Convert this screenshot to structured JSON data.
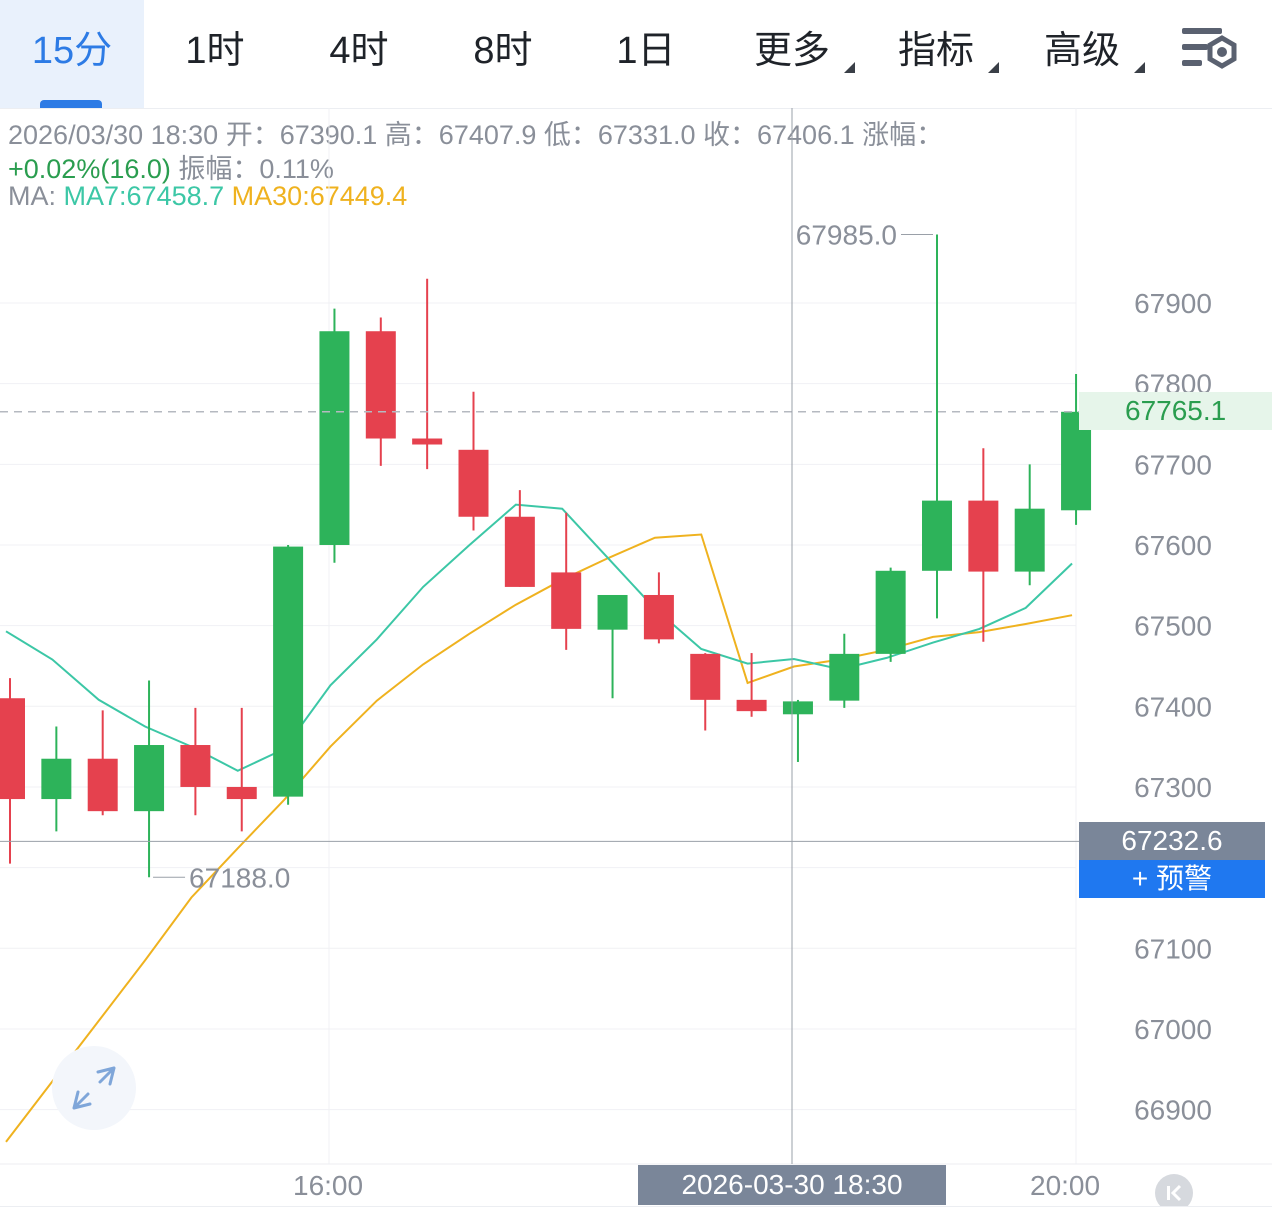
{
  "tabs": [
    {
      "label": "15分",
      "active": true
    },
    {
      "label": "1时"
    },
    {
      "label": "4时"
    },
    {
      "label": "8时"
    },
    {
      "label": "1日"
    },
    {
      "label": "更多",
      "dropdown": true
    },
    {
      "label": "指标",
      "dropdown": true
    },
    {
      "label": "高级",
      "dropdown": true
    }
  ],
  "settings_icon": "chart-settings-icon",
  "info": {
    "line1": "2026/03/30 18:30 开：67390.1 高：67407.9 低：67331.0 收：67406.1 涨幅：",
    "change": "+0.02%(16.0)",
    "amp": " 振幅：0.11%",
    "ma_prefix": "MA: ",
    "ma7": "MA7:67458.7",
    "ma30": "MA30:67449.4"
  },
  "labels": {
    "high_marker": "67985.0",
    "low_marker": "67188.0",
    "current_price": "67765.1",
    "crosshair_price": "67232.6",
    "alert_button": "+ 预警",
    "crosshair_time": "2026-03-30 18:30",
    "x_ticks": [
      "16:00",
      "20:00"
    ]
  },
  "colors": {
    "up": "#2db35a",
    "down": "#e5414e",
    "ma7": "#3cc7a6",
    "ma30": "#efb21f",
    "accent": "#2d7be5"
  },
  "chart_data": {
    "type": "candlestick",
    "interval": "15分",
    "y_ticks": [
      66900,
      67000,
      67100,
      67200,
      67300,
      67400,
      67500,
      67600,
      67700,
      67800,
      67900
    ],
    "y_tick_labels_shown": [
      "67900",
      "67800",
      "67700",
      "67600",
      "67500",
      "67400",
      "67300",
      "67100",
      "67000",
      "66900"
    ],
    "ylim": [
      66860,
      68135
    ],
    "current_price": 67765.1,
    "crosshair_price": 67232.6,
    "crosshair_time": "2026-03-30 18:30",
    "candles": [
      {
        "o": 67410,
        "h": 67435,
        "l": 67205,
        "c": 67285
      },
      {
        "o": 67285,
        "h": 67375,
        "l": 67245,
        "c": 67335
      },
      {
        "o": 67335,
        "h": 67395,
        "l": 67265,
        "c": 67270
      },
      {
        "o": 67270,
        "h": 67432,
        "l": 67188,
        "c": 67352
      },
      {
        "o": 67352,
        "h": 67398,
        "l": 67265,
        "c": 67300
      },
      {
        "o": 67300,
        "h": 67398,
        "l": 67245,
        "c": 67285
      },
      {
        "o": 67288,
        "h": 67600,
        "l": 67278,
        "c": 67598
      },
      {
        "o": 67600,
        "h": 67893,
        "l": 67578,
        "c": 67865
      },
      {
        "o": 67865,
        "h": 67882,
        "l": 67698,
        "c": 67732
      },
      {
        "o": 67732,
        "h": 67930,
        "l": 67694,
        "c": 67725
      },
      {
        "o": 67718,
        "h": 67790,
        "l": 67618,
        "c": 67635
      },
      {
        "o": 67635,
        "h": 67668,
        "l": 67548,
        "c": 67548
      },
      {
        "o": 67566,
        "h": 67640,
        "l": 67470,
        "c": 67496
      },
      {
        "o": 67495,
        "h": 67530,
        "l": 67410,
        "c": 67538
      },
      {
        "o": 67538,
        "h": 67566,
        "l": 67478,
        "c": 67483
      },
      {
        "o": 67465,
        "h": 67466,
        "l": 67370,
        "c": 67408
      },
      {
        "o": 67408,
        "h": 67466,
        "l": 67387,
        "c": 67394
      },
      {
        "o": 67390.1,
        "h": 67407.9,
        "l": 67331.0,
        "c": 67406.1
      },
      {
        "o": 67407,
        "h": 67490,
        "l": 67398,
        "c": 67465
      },
      {
        "o": 67465,
        "h": 67572,
        "l": 67455,
        "c": 67568
      },
      {
        "o": 67568,
        "h": 67985,
        "l": 67509,
        "c": 67655
      },
      {
        "o": 67655,
        "h": 67720,
        "l": 67480,
        "c": 67567
      },
      {
        "o": 67567,
        "h": 67700,
        "l": 67550,
        "c": 67645
      },
      {
        "o": 67643,
        "h": 67812,
        "l": 67625,
        "c": 67765.1
      }
    ],
    "ma7": [
      67493,
      67458,
      67408,
      67375,
      67350,
      67320,
      67347,
      67426,
      67483,
      67548,
      67600,
      67650,
      67645,
      67583,
      67521,
      67471,
      67453,
      67458.7,
      67446,
      67460,
      67479,
      67496,
      67522,
      67577
    ],
    "ma30": [
      66860,
      66935,
      67010,
      67085,
      67163,
      67224,
      67284,
      67350,
      67407,
      67452,
      67490,
      67526,
      67557,
      67584,
      67609,
      67613,
      67429,
      67449.4,
      67458,
      67470,
      67486,
      67492,
      67502,
      67513
    ]
  }
}
